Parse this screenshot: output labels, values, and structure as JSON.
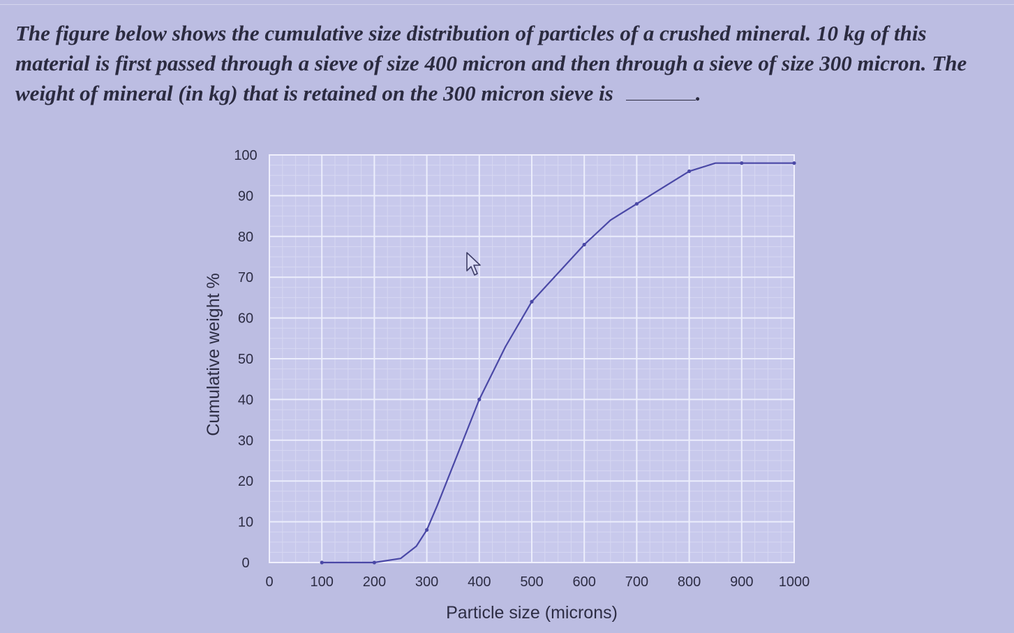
{
  "question": {
    "text": "The figure below shows the cumulative size distribution of particles of a crushed mineral.  10 kg of this material is first passed through a sieve of size 400 micron and then through a sieve of size 300 micron. The weight of mineral (in kg) that is retained on the 300 micron sieve is",
    "end": "."
  },
  "chart_data": {
    "type": "line",
    "xlabel": "Particle size (microns)",
    "ylabel": "Cumulative weight %",
    "xlim": [
      0,
      1000
    ],
    "ylim": [
      0,
      100
    ],
    "grid": true,
    "x_ticks": [
      0,
      100,
      200,
      300,
      400,
      500,
      600,
      700,
      800,
      900,
      1000
    ],
    "y_ticks": [
      0,
      10,
      20,
      30,
      40,
      50,
      60,
      70,
      80,
      90,
      100
    ],
    "series": [
      {
        "color": "#4a48a6",
        "points": [
          [
            100,
            0
          ],
          [
            200,
            0
          ],
          [
            250,
            1
          ],
          [
            280,
            4
          ],
          [
            300,
            8
          ],
          [
            320,
            14
          ],
          [
            360,
            27
          ],
          [
            400,
            40
          ],
          [
            450,
            53
          ],
          [
            500,
            64
          ],
          [
            550,
            71
          ],
          [
            600,
            78
          ],
          [
            650,
            84
          ],
          [
            700,
            88
          ],
          [
            750,
            92
          ],
          [
            800,
            96
          ],
          [
            850,
            98
          ],
          [
            900,
            98
          ],
          [
            1000,
            98
          ]
        ],
        "markers": [
          [
            100,
            0
          ],
          [
            200,
            0
          ],
          [
            300,
            8
          ],
          [
            400,
            40
          ],
          [
            500,
            64
          ],
          [
            600,
            78
          ],
          [
            700,
            88
          ],
          [
            800,
            96
          ],
          [
            900,
            98
          ],
          [
            1000,
            98
          ]
        ]
      }
    ]
  }
}
